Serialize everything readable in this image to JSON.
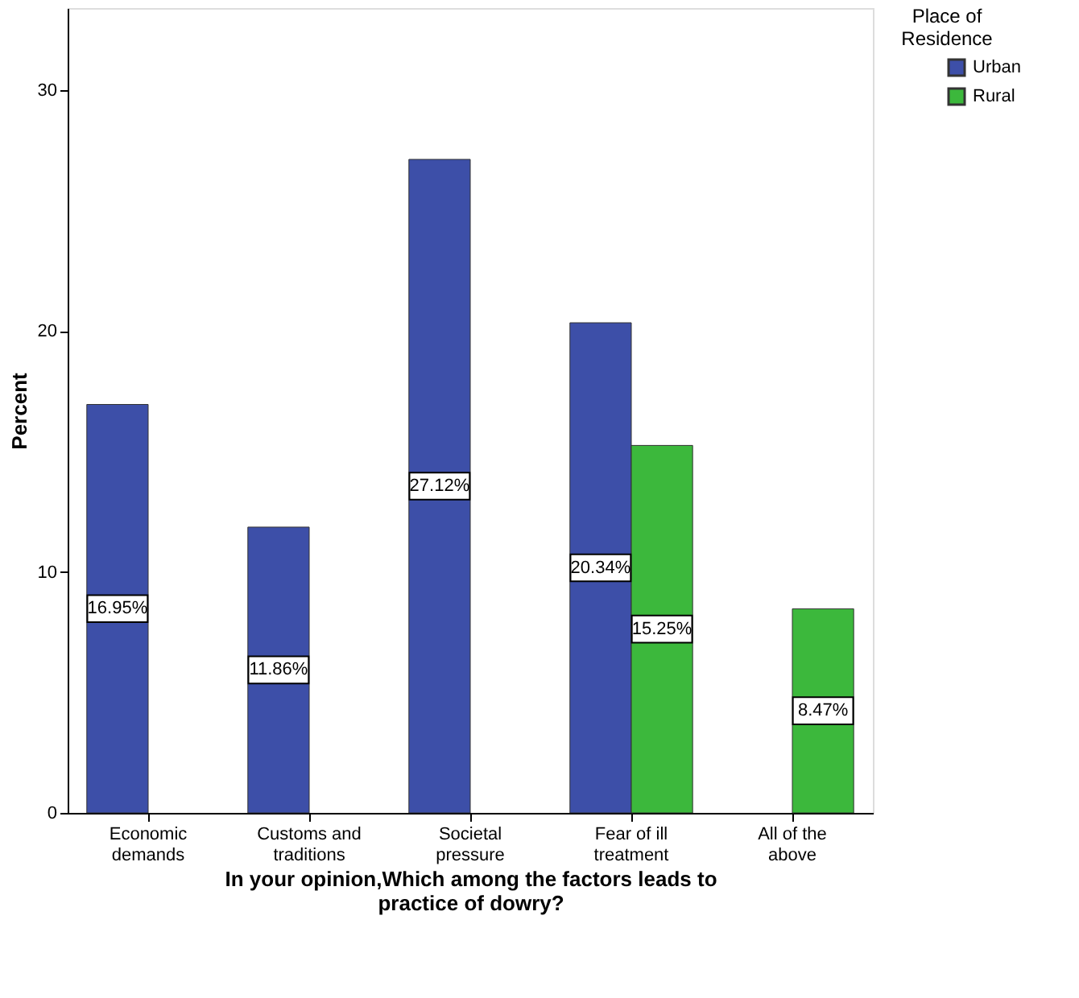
{
  "chart_data": {
    "type": "bar",
    "categories": [
      "Economic demands",
      "Customs and traditions",
      "Societal pressure",
      "Fear of ill treatment",
      "All of the above"
    ],
    "series": [
      {
        "name": "Urban",
        "color": "#3d4fa8",
        "values": [
          16.95,
          11.86,
          27.12,
          20.34,
          null
        ],
        "value_labels": [
          "16.95%",
          "11.86%",
          "27.12%",
          "20.34%",
          null
        ]
      },
      {
        "name": "Rural",
        "color": "#3cb83c",
        "values": [
          null,
          null,
          null,
          15.25,
          8.47
        ],
        "value_labels": [
          null,
          null,
          null,
          "15.25%",
          "8.47%"
        ]
      }
    ],
    "xlabel": "In your opinion,Which among the factors leads to practice of dowry?",
    "ylabel": "Percent",
    "legend_title": "Place of Residence",
    "ylim": [
      0,
      33.4
    ],
    "yticks": [
      0,
      10,
      20,
      30
    ],
    "grid": false,
    "legend": "top right"
  }
}
